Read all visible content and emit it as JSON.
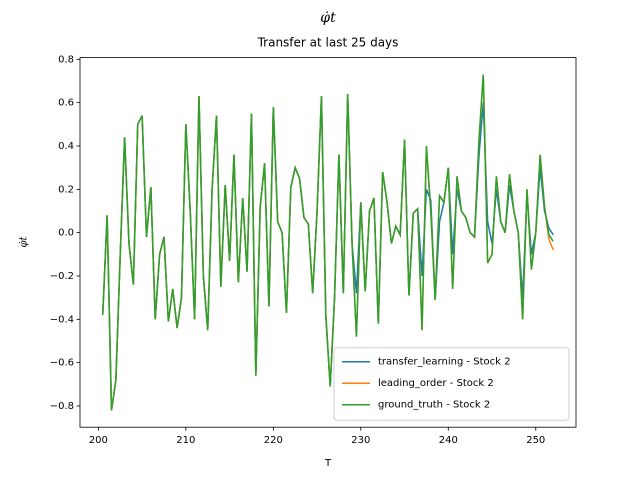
{
  "chart_data": {
    "type": "line",
    "title": "φ̇t",
    "subtitle": "Transfer at last 25 days",
    "xlabel": "T",
    "ylabel": "φ̇t",
    "x": [
      200.5,
      201,
      201.5,
      202,
      202.5,
      203,
      203.5,
      204,
      204.5,
      205,
      205.5,
      206,
      206.5,
      207,
      207.5,
      208,
      208.5,
      209,
      209.5,
      210,
      210.5,
      211,
      211.5,
      212,
      212.5,
      213,
      213.5,
      214,
      214.5,
      215,
      215.5,
      216,
      216.5,
      217,
      217.5,
      218,
      218.5,
      219,
      219.5,
      220,
      220.5,
      221,
      221.5,
      222,
      222.5,
      223,
      223.5,
      224,
      224.5,
      225,
      225.5,
      226,
      226.5,
      227,
      227.5,
      228,
      228.5,
      229,
      229.5,
      230,
      230.5,
      231,
      231.5,
      232,
      232.5,
      233,
      233.5,
      234,
      234.5,
      235,
      235.5,
      236,
      236.5,
      237,
      237.5,
      238,
      238.5,
      239,
      239.5,
      240,
      240.5,
      241,
      241.5,
      242,
      242.5,
      243,
      243.5,
      244,
      244.5,
      245,
      245.5,
      246,
      246.5,
      247,
      247.5,
      248,
      248.5,
      249,
      249.5,
      250,
      250.5,
      251,
      251.5,
      252
    ],
    "series": [
      {
        "name": "transfer_learning - Stock 2",
        "color": "#1f77b4",
        "values": [
          -0.38,
          0.08,
          -0.82,
          -0.68,
          -0.1,
          0.44,
          -0.05,
          -0.24,
          0.5,
          0.54,
          -0.02,
          0.21,
          -0.4,
          -0.1,
          -0.02,
          -0.41,
          -0.26,
          -0.44,
          -0.3,
          0.5,
          0.1,
          -0.4,
          0.63,
          -0.2,
          -0.45,
          0.2,
          0.54,
          -0.25,
          0.22,
          -0.13,
          0.36,
          -0.23,
          0.16,
          -0.18,
          0.55,
          -0.66,
          0.12,
          0.32,
          -0.34,
          0.58,
          0.05,
          0.0,
          -0.37,
          0.21,
          0.3,
          0.25,
          0.07,
          0.04,
          -0.28,
          0.1,
          0.63,
          -0.38,
          -0.71,
          -0.3,
          0.36,
          -0.28,
          0.64,
          -0.05,
          -0.28,
          0.14,
          -0.27,
          0.1,
          0.16,
          -0.42,
          0.28,
          0.14,
          -0.05,
          0.03,
          -0.01,
          0.43,
          -0.29,
          0.09,
          0.11,
          -0.2,
          0.2,
          0.15,
          -0.31,
          0.05,
          0.14,
          0.3,
          -0.1,
          0.2,
          0.1,
          0.07,
          0.0,
          -0.02,
          0.35,
          0.6,
          0.05,
          -0.05,
          0.2,
          0.05,
          0.0,
          0.22,
          0.1,
          0.0,
          -0.3,
          0.18,
          -0.1,
          0.0,
          0.3,
          0.1,
          0.02,
          -0.01
        ]
      },
      {
        "name": "leading_order - Stock 2",
        "color": "#ff7f0e",
        "values": [
          -0.38,
          0.08,
          -0.82,
          -0.68,
          -0.1,
          0.44,
          -0.05,
          -0.24,
          0.5,
          0.54,
          -0.02,
          0.21,
          -0.4,
          -0.1,
          -0.02,
          -0.41,
          -0.26,
          -0.44,
          -0.3,
          0.5,
          0.1,
          -0.4,
          0.63,
          -0.2,
          -0.45,
          0.2,
          0.54,
          -0.25,
          0.22,
          -0.13,
          0.36,
          -0.23,
          0.16,
          -0.18,
          0.55,
          -0.66,
          0.12,
          0.32,
          -0.34,
          0.58,
          0.05,
          0.0,
          -0.37,
          0.21,
          0.3,
          0.25,
          0.07,
          0.04,
          -0.28,
          0.1,
          0.63,
          -0.38,
          -0.71,
          -0.3,
          0.36,
          -0.28,
          0.64,
          -0.05,
          -0.48,
          0.14,
          -0.27,
          0.1,
          0.16,
          -0.42,
          0.28,
          0.14,
          -0.05,
          0.03,
          -0.01,
          0.43,
          -0.29,
          0.09,
          0.11,
          -0.45,
          0.4,
          0.1,
          -0.31,
          0.17,
          0.14,
          0.3,
          -0.26,
          0.26,
          0.1,
          0.07,
          0.0,
          -0.02,
          0.42,
          0.73,
          -0.14,
          -0.1,
          0.26,
          0.05,
          0.0,
          0.27,
          0.1,
          0.0,
          -0.4,
          0.2,
          -0.17,
          0.0,
          0.36,
          0.12,
          -0.03,
          -0.08
        ]
      },
      {
        "name": "ground_truth - Stock 2",
        "color": "#2ca02c",
        "values": [
          -0.38,
          0.08,
          -0.82,
          -0.68,
          -0.1,
          0.44,
          -0.05,
          -0.24,
          0.5,
          0.54,
          -0.02,
          0.21,
          -0.4,
          -0.1,
          -0.02,
          -0.41,
          -0.26,
          -0.44,
          -0.3,
          0.5,
          0.1,
          -0.4,
          0.63,
          -0.2,
          -0.45,
          0.2,
          0.54,
          -0.25,
          0.22,
          -0.13,
          0.36,
          -0.23,
          0.16,
          -0.18,
          0.55,
          -0.66,
          0.12,
          0.32,
          -0.34,
          0.58,
          0.05,
          0.0,
          -0.37,
          0.21,
          0.3,
          0.25,
          0.07,
          0.04,
          -0.28,
          0.1,
          0.63,
          -0.38,
          -0.71,
          -0.3,
          0.36,
          -0.28,
          0.64,
          -0.05,
          -0.48,
          0.14,
          -0.27,
          0.1,
          0.16,
          -0.42,
          0.28,
          0.14,
          -0.05,
          0.03,
          -0.01,
          0.43,
          -0.29,
          0.09,
          0.11,
          -0.45,
          0.4,
          0.1,
          -0.31,
          0.17,
          0.14,
          0.3,
          -0.26,
          0.26,
          0.1,
          0.07,
          0.0,
          -0.02,
          0.42,
          0.73,
          -0.14,
          -0.1,
          0.26,
          0.05,
          0.0,
          0.27,
          0.1,
          0.0,
          -0.4,
          0.2,
          -0.17,
          0.0,
          0.36,
          0.12,
          -0.01,
          -0.04
        ]
      }
    ],
    "xlim": [
      197.9,
      254.6
    ],
    "xticks": [
      200,
      210,
      220,
      230,
      240,
      250
    ],
    "ylim": [
      -0.898,
      0.808
    ],
    "yticks": [
      {
        "value": -0.8,
        "label": "−0.8"
      },
      {
        "value": -0.6,
        "label": "−0.6"
      },
      {
        "value": -0.4,
        "label": "−0.4"
      },
      {
        "value": -0.2,
        "label": "−0.2"
      },
      {
        "value": 0,
        "label": "0.0"
      },
      0.2,
      0.4,
      0.6,
      0.8
    ],
    "grid": false,
    "legend": "lower right"
  }
}
